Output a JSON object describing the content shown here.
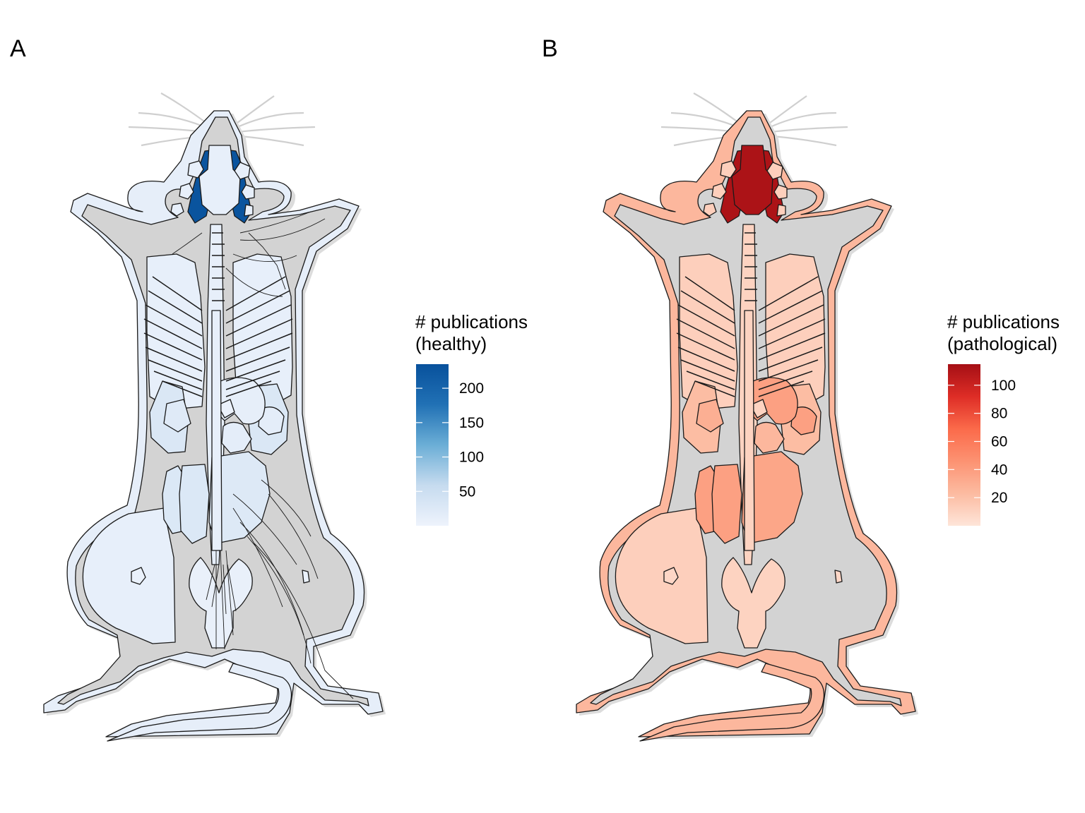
{
  "panels": [
    {
      "tag": "A",
      "legend": {
        "title_line1": "# publications",
        "title_line2": "(healthy)"
      },
      "colors": {
        "low": "#eef3fc",
        "mid": "#c6dbef",
        "high": "#08519c",
        "base": "#d3d3d3"
      },
      "nerves_visible": true
    },
    {
      "tag": "B",
      "legend": {
        "title_line1": "# publications",
        "title_line2": "(pathological)"
      },
      "colors": {
        "low": "#fee5d9",
        "mid": "#fcae91",
        "high": "#a50f15",
        "base": "#d3d3d3"
      },
      "nerves_visible": false
    }
  ],
  "chart_data": [
    {
      "type": "heatmap",
      "panel": "A",
      "legend_title": "# publications (healthy)",
      "scale": {
        "min": 0,
        "max": 235,
        "ticks": [
          50,
          100,
          150,
          200
        ],
        "palette": [
          "#eef3fc",
          "#c6dbef",
          "#6baed6",
          "#2171b5",
          "#08519c"
        ]
      },
      "regions": [
        {
          "name": "brain",
          "value": 230
        },
        {
          "name": "skin",
          "value": 12
        },
        {
          "name": "skeletal_muscle",
          "value": 10
        },
        {
          "name": "spinal_cord",
          "value": 10
        },
        {
          "name": "lung",
          "value": 30
        },
        {
          "name": "heart",
          "value": 15
        },
        {
          "name": "liver",
          "value": 25
        },
        {
          "name": "stomach",
          "value": 12
        },
        {
          "name": "kidney",
          "value": 28
        },
        {
          "name": "spleen",
          "value": 22
        },
        {
          "name": "pancreas",
          "value": 15
        },
        {
          "name": "intestine",
          "value": 10
        },
        {
          "name": "bladder",
          "value": 8
        },
        {
          "name": "thymus",
          "value": 5
        },
        {
          "name": "eye",
          "value": 10
        },
        {
          "name": "lymph_node",
          "value": 6
        }
      ]
    },
    {
      "type": "heatmap",
      "panel": "B",
      "legend_title": "# publications (pathological)",
      "scale": {
        "min": 0,
        "max": 115,
        "ticks": [
          20,
          40,
          60,
          80,
          100
        ],
        "palette": [
          "#fee5d9",
          "#fcbba1",
          "#fc9272",
          "#fb6a4a",
          "#de2d26",
          "#a50f15"
        ]
      },
      "regions": [
        {
          "name": "brain",
          "value": 112
        },
        {
          "name": "skin",
          "value": 25
        },
        {
          "name": "skeletal_muscle",
          "value": 12
        },
        {
          "name": "spinal_cord",
          "value": 10
        },
        {
          "name": "lung",
          "value": 22
        },
        {
          "name": "heart",
          "value": 25
        },
        {
          "name": "liver",
          "value": 35
        },
        {
          "name": "stomach",
          "value": 38
        },
        {
          "name": "kidney",
          "value": 38
        },
        {
          "name": "spleen",
          "value": 30
        },
        {
          "name": "pancreas",
          "value": 38
        },
        {
          "name": "intestine",
          "value": 12
        },
        {
          "name": "bladder",
          "value": 10
        },
        {
          "name": "thymus",
          "value": 10
        },
        {
          "name": "eye",
          "value": 12
        },
        {
          "name": "lymph_node",
          "value": 8
        }
      ]
    }
  ]
}
